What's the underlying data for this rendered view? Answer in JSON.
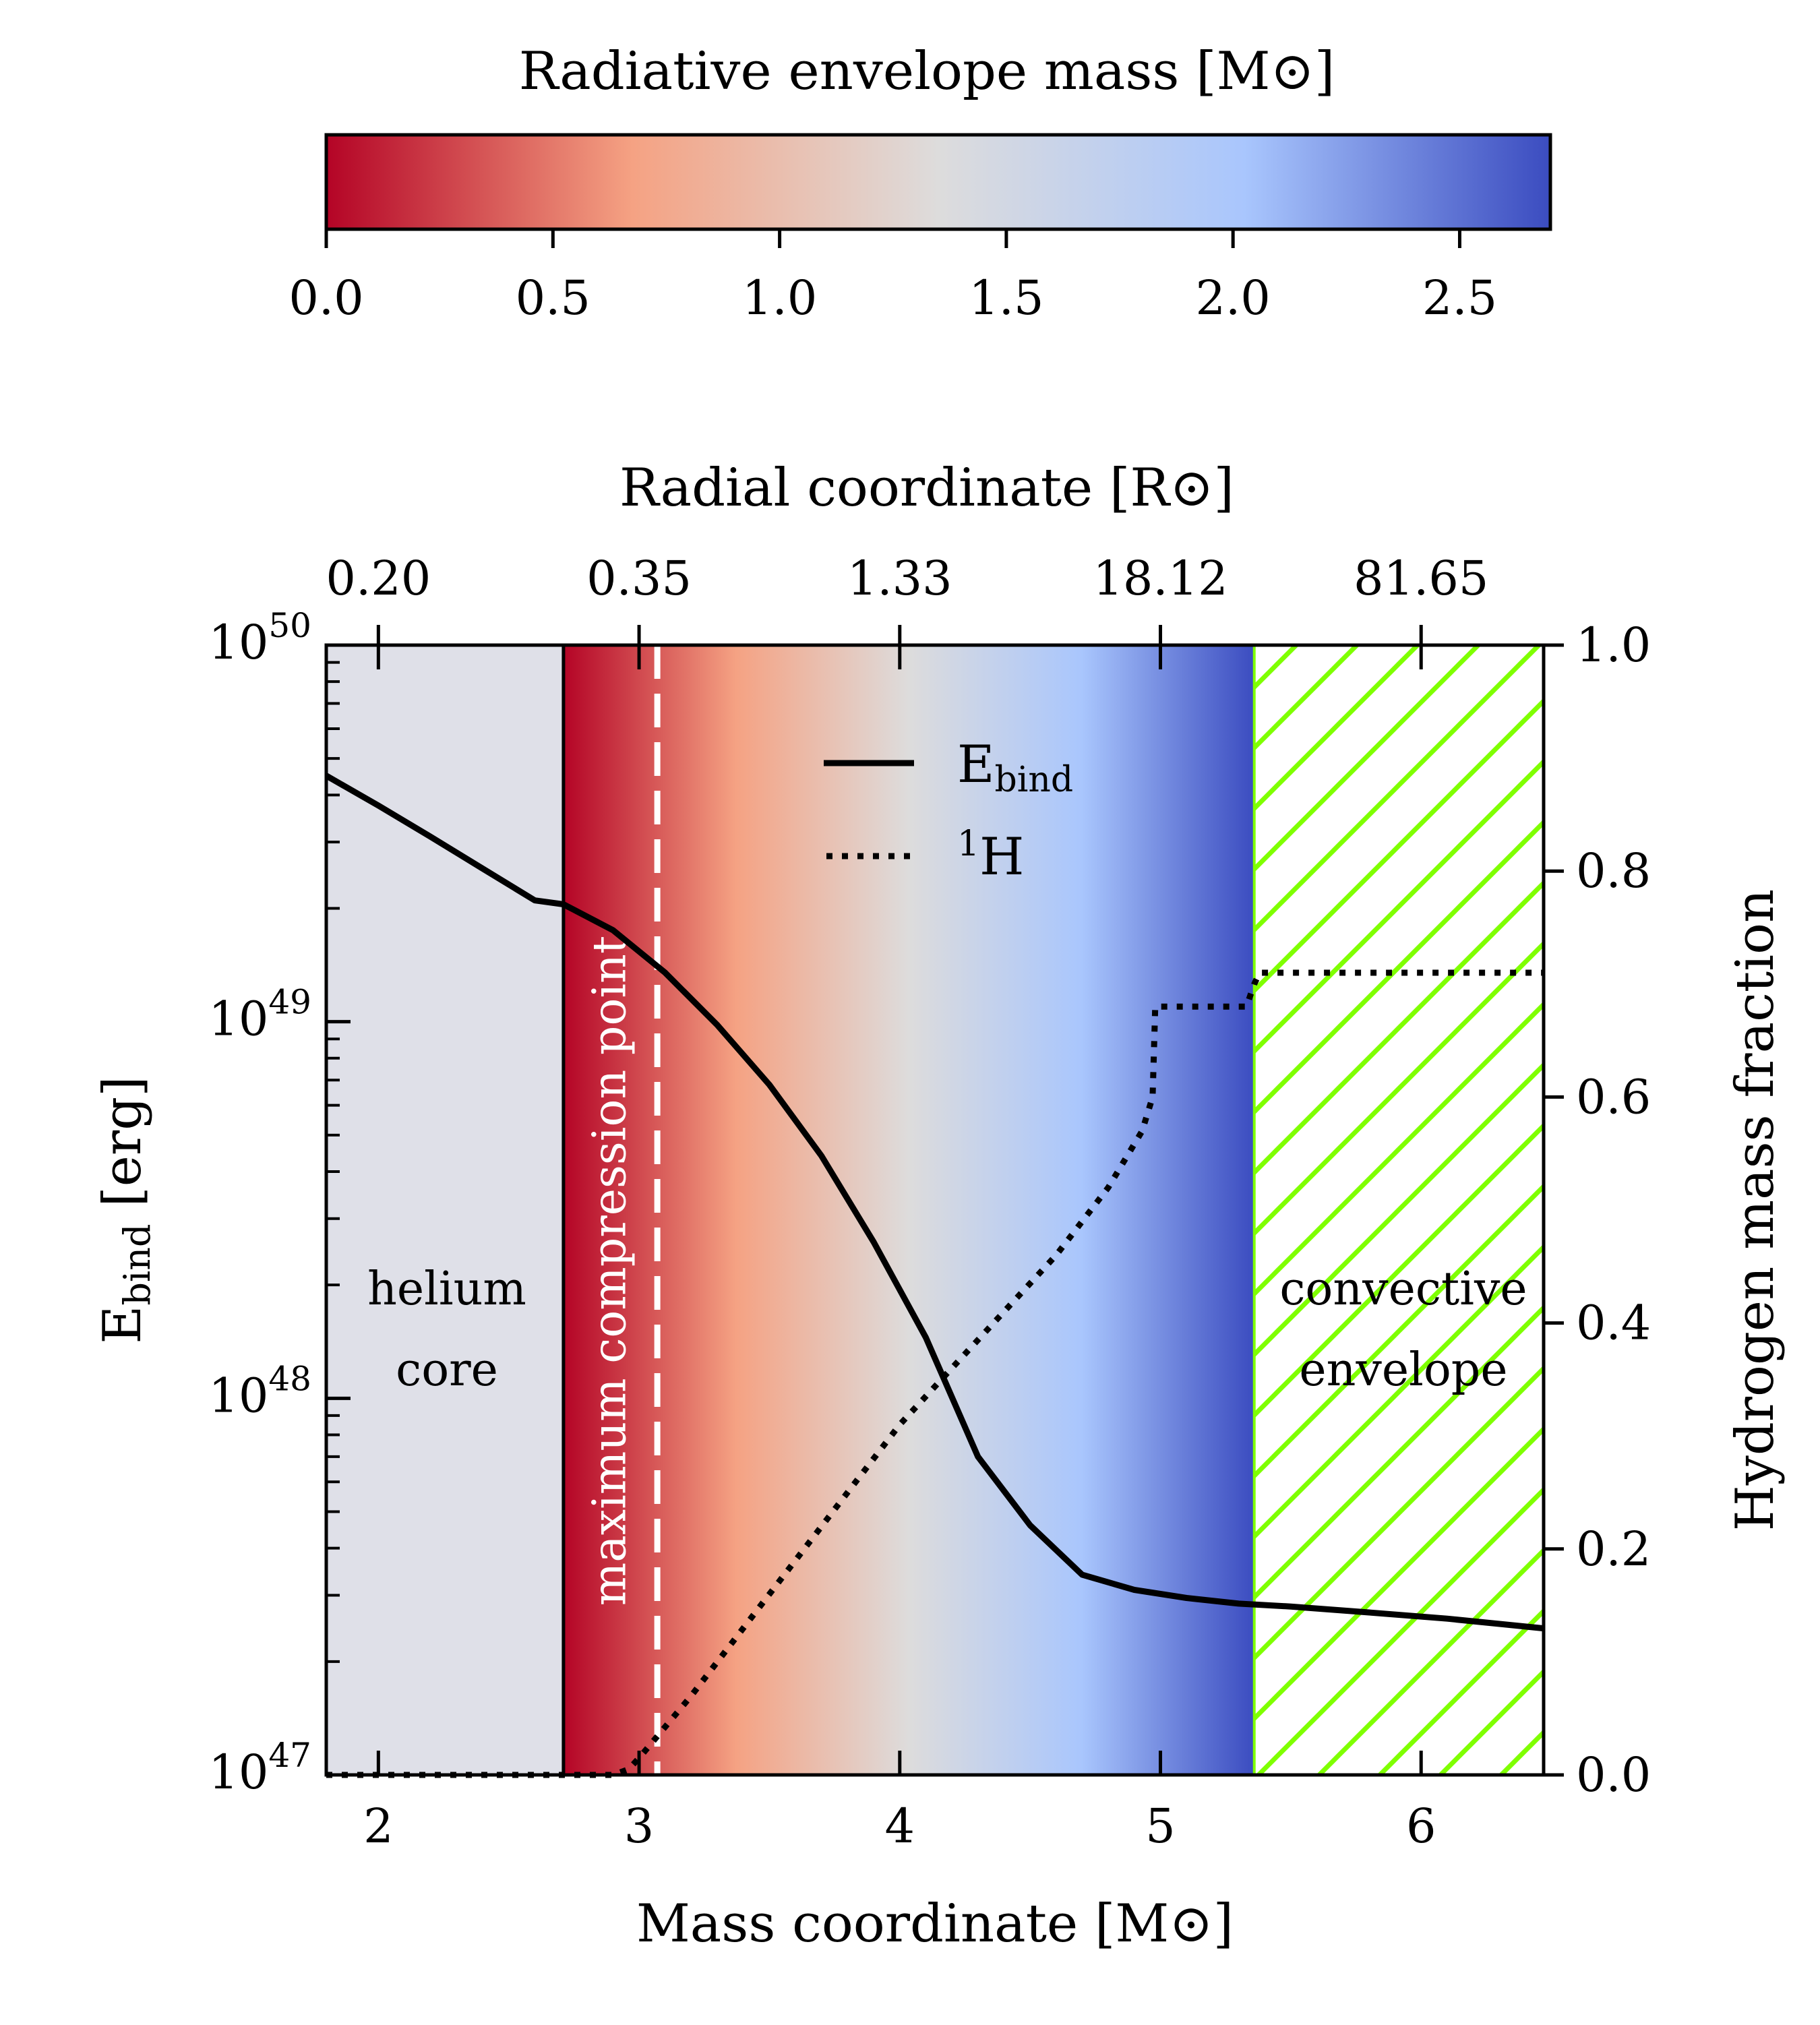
{
  "chart_data": {
    "type": "line",
    "colorbar": {
      "title": "Radiative envelope mass [M⊙]",
      "ticks": [
        "0.0",
        "0.5",
        "1.0",
        "1.5",
        "2.0",
        "2.5"
      ],
      "tick_values": [
        0.0,
        0.5,
        1.0,
        1.5,
        2.0,
        2.5
      ],
      "range": [
        0.0,
        2.7
      ],
      "colormap": [
        "#b40426",
        "#f5a283",
        "#dddcdc",
        "#a9c6fd",
        "#3b4cc0"
      ]
    },
    "top_axis": {
      "label": "Radial coordinate [R⊙]",
      "ticks": [
        "0.20",
        "0.35",
        "1.33",
        "18.12",
        "81.65"
      ],
      "tick_mass_positions": [
        2.0,
        3.0,
        4.0,
        5.0,
        6.0
      ]
    },
    "xaxis": {
      "label": "Mass coordinate [M⊙]",
      "ticks": [
        "2",
        "3",
        "4",
        "5",
        "6"
      ],
      "tick_values": [
        2,
        3,
        4,
        5,
        6
      ],
      "range": [
        1.8,
        6.47
      ]
    },
    "yaxis_left": {
      "label_main": "E",
      "label_sub": "bind",
      "label_unit": " [erg]",
      "scale": "log",
      "range": [
        1e+47,
        1e+50
      ],
      "ticks": [
        {
          "base": "10",
          "exp": "47",
          "value": 1e+47
        },
        {
          "base": "10",
          "exp": "48",
          "value": 1e+48
        },
        {
          "base": "10",
          "exp": "49",
          "value": 1e+49
        },
        {
          "base": "10",
          "exp": "50",
          "value": 1e+50
        }
      ]
    },
    "yaxis_right": {
      "label": "Hydrogen mass fraction",
      "range": [
        0.0,
        1.0
      ],
      "ticks": [
        "0.0",
        "0.2",
        "0.4",
        "0.6",
        "0.8",
        "1.0"
      ],
      "tick_values": [
        0.0,
        0.2,
        0.4,
        0.6,
        0.8,
        1.0
      ]
    },
    "regions": {
      "helium_core": {
        "label_line1": "helium",
        "label_line2": "core",
        "mass_range": [
          1.8,
          2.71
        ],
        "color": "#dfe0e8"
      },
      "radiative_envelope": {
        "mass_range": [
          2.71,
          5.36
        ]
      },
      "convective_envelope": {
        "label_line1": "convective",
        "label_line2": "envelope",
        "mass_range": [
          5.36,
          6.47
        ],
        "hatch_color": "#7fff00"
      }
    },
    "max_compression": {
      "label": "maximum compression point",
      "mass": 3.07
    },
    "legend": [
      {
        "label_main": "E",
        "label_sub": "bind",
        "style": "solid"
      },
      {
        "label_sup": "1",
        "label_main": "H",
        "style": "dotted"
      }
    ],
    "series": [
      {
        "name": "E_bind",
        "axis": "left",
        "style": "solid",
        "x": [
          1.8,
          2.0,
          2.2,
          2.4,
          2.6,
          2.71,
          2.9,
          3.1,
          3.3,
          3.5,
          3.7,
          3.9,
          4.1,
          4.3,
          4.5,
          4.7,
          4.9,
          5.1,
          5.3,
          5.5,
          5.8,
          6.1,
          6.47
        ],
        "y": [
          4.5e+49,
          3.75e+49,
          3.1e+49,
          2.55e+49,
          2.1e+49,
          2.05e+49,
          1.75e+49,
          1.35e+49,
          9.8e+48,
          6.8e+48,
          4.4e+48,
          2.6e+48,
          1.45e+48,
          7e+47,
          4.6e+47,
          3.4e+47,
          3.1e+47,
          2.95e+47,
          2.85e+47,
          2.8e+47,
          2.7e+47,
          2.6e+47,
          2.45e+47
        ]
      },
      {
        "name": "1H",
        "axis": "right",
        "style": "dotted",
        "x": [
          1.8,
          2.9,
          2.96,
          3.0,
          3.2,
          3.4,
          3.6,
          3.8,
          4.0,
          4.2,
          4.4,
          4.6,
          4.8,
          4.93,
          4.97,
          4.98,
          5.33,
          5.36,
          5.38,
          6.47
        ],
        "y": [
          0.0,
          0.0,
          0.005,
          0.015,
          0.07,
          0.13,
          0.19,
          0.25,
          0.31,
          0.36,
          0.41,
          0.46,
          0.52,
          0.57,
          0.6,
          0.68,
          0.68,
          0.7,
          0.71,
          0.71
        ]
      }
    ]
  }
}
